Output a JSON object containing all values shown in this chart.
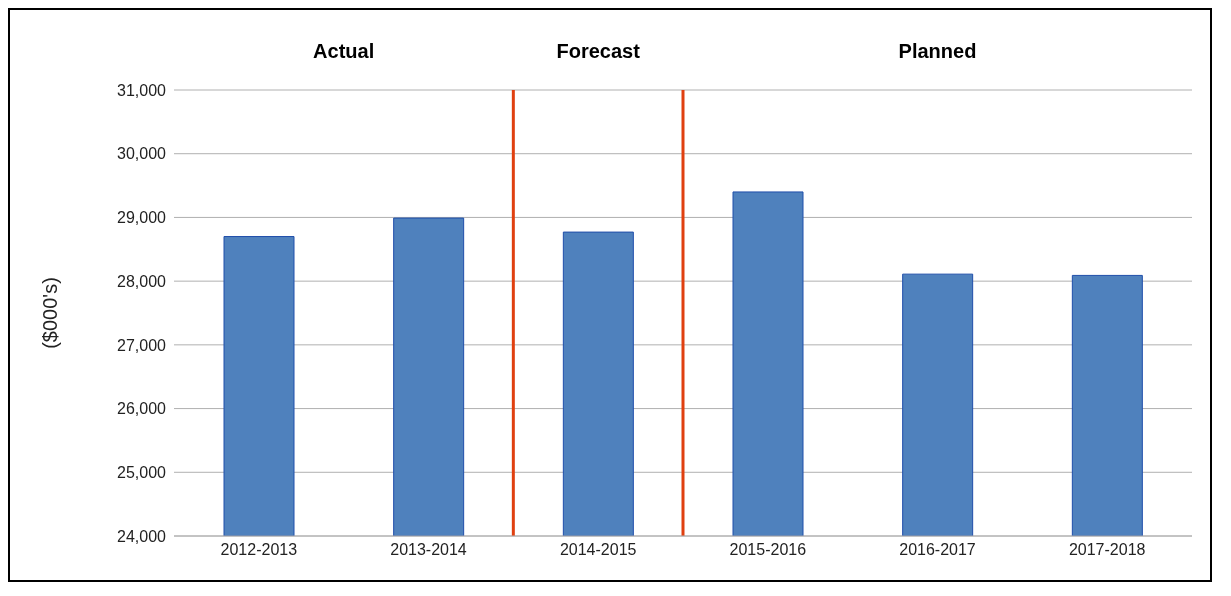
{
  "chart_data": {
    "type": "bar",
    "categories": [
      "2012-2013",
      "2013-2014",
      "2014-2015",
      "2015-2016",
      "2016-2017",
      "2017-2018"
    ],
    "values": [
      28700,
      28990,
      28770,
      29400,
      28110,
      28090
    ],
    "color": "#4f81bd",
    "ylabel": "($000's)",
    "ylim": [
      24000,
      31000
    ],
    "yticks": [
      {
        "value": 24000,
        "label": "24,000"
      },
      {
        "value": 25000,
        "label": "25,000"
      },
      {
        "value": 26000,
        "label": "26,000"
      },
      {
        "value": 27000,
        "label": "27,000"
      },
      {
        "value": 28000,
        "label": "28,000"
      },
      {
        "value": 29000,
        "label": "29,000"
      },
      {
        "value": 30000,
        "label": "30,000"
      },
      {
        "value": 31000,
        "label": "31,000"
      }
    ],
    "grid": "y",
    "annotations": [
      "Actual",
      "Forecast",
      "Planned"
    ]
  }
}
